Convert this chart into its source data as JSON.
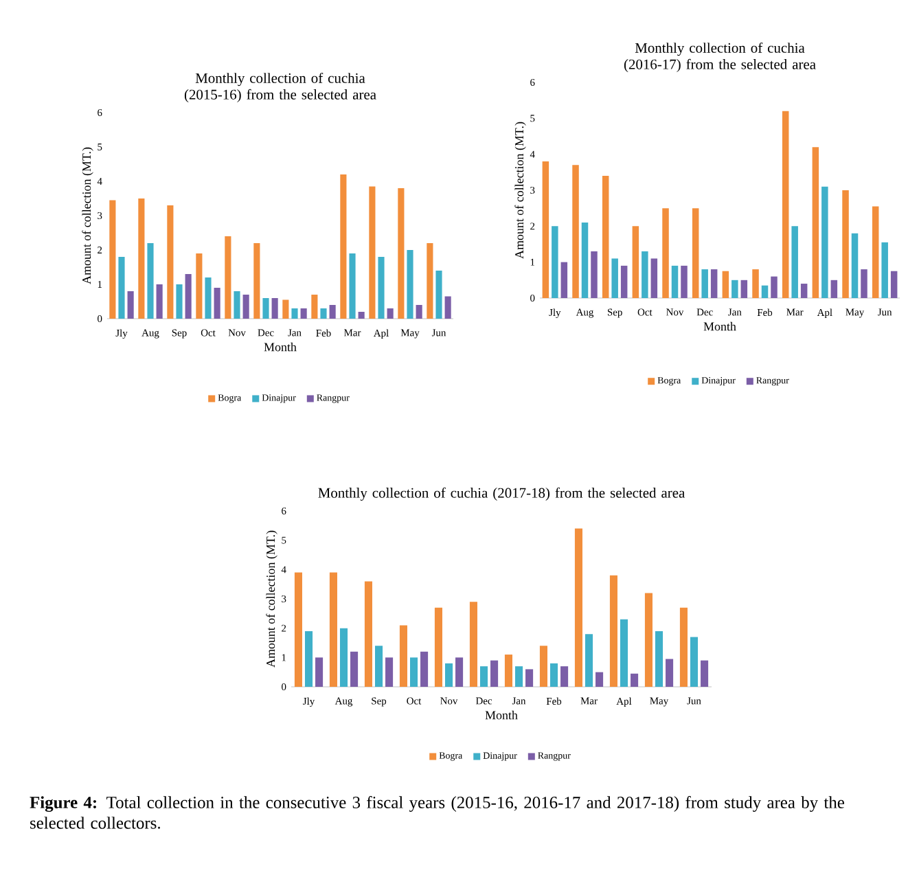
{
  "chart_data": [
    {
      "type": "bar",
      "title": "Monthly collection of cuchia (2015-16) from the selected area",
      "xlabel": "Month",
      "ylabel": "Amount of collection (MT.)",
      "categories": [
        "Jly",
        "Aug",
        "Sep",
        "Oct",
        "Nov",
        "Dec",
        "Jan",
        "Feb",
        "Mar",
        "Apl",
        "May",
        "Jun"
      ],
      "series": [
        {
          "name": "Bogra",
          "color": "#f28e3b",
          "values": [
            3.45,
            3.5,
            3.3,
            1.9,
            2.4,
            2.2,
            0.55,
            0.7,
            4.2,
            3.85,
            3.8,
            2.2
          ]
        },
        {
          "name": "Dinajpur",
          "color": "#3fb0c9",
          "values": [
            1.8,
            2.2,
            1.0,
            1.2,
            0.8,
            0.6,
            0.3,
            0.3,
            1.9,
            1.8,
            2.0,
            1.4
          ]
        },
        {
          "name": "Rangpur",
          "color": "#7b5ea7",
          "values": [
            0.8,
            1.0,
            1.3,
            0.9,
            0.7,
            0.6,
            0.3,
            0.4,
            0.2,
            0.3,
            0.4,
            0.65
          ]
        }
      ],
      "ylim": [
        0,
        6
      ],
      "yticks": [
        0,
        1,
        2,
        3,
        4,
        5,
        6
      ],
      "legend": "bottom"
    },
    {
      "type": "bar",
      "title": "Monthly collection of cuchia (2016-17) from the selected area",
      "xlabel": "Month",
      "ylabel": "Amount of collection (MT.)",
      "categories": [
        "Jly",
        "Aug",
        "Sep",
        "Oct",
        "Nov",
        "Dec",
        "Jan",
        "Feb",
        "Mar",
        "Apl",
        "May",
        "Jun"
      ],
      "series": [
        {
          "name": "Bogra",
          "color": "#f28e3b",
          "values": [
            3.8,
            3.7,
            3.4,
            2.0,
            2.5,
            2.5,
            0.75,
            0.8,
            5.2,
            4.2,
            3.0,
            2.55
          ]
        },
        {
          "name": "Dinajpur",
          "color": "#3fb0c9",
          "values": [
            2.0,
            2.1,
            1.1,
            1.3,
            0.9,
            0.8,
            0.5,
            0.35,
            2.0,
            3.1,
            1.8,
            1.55
          ]
        },
        {
          "name": "Rangpur",
          "color": "#7b5ea7",
          "values": [
            1.0,
            1.3,
            0.9,
            1.1,
            0.9,
            0.8,
            0.5,
            0.6,
            0.4,
            0.5,
            0.8,
            0.75
          ]
        }
      ],
      "ylim": [
        0,
        6
      ],
      "yticks": [
        0,
        1,
        2,
        3,
        4,
        5,
        6
      ],
      "legend": "bottom"
    },
    {
      "type": "bar",
      "title": "Monthly collection of cuchia (2017-18)  from the selected area",
      "xlabel": "Month",
      "ylabel": "Amount of collection (MT.)",
      "categories": [
        "Jly",
        "Aug",
        "Sep",
        "Oct",
        "Nov",
        "Dec",
        "Jan",
        "Feb",
        "Mar",
        "Apl",
        "May",
        "Jun"
      ],
      "series": [
        {
          "name": "Bogra",
          "color": "#f28e3b",
          "values": [
            3.9,
            3.9,
            3.6,
            2.1,
            2.7,
            2.9,
            1.1,
            1.4,
            5.4,
            3.8,
            3.2,
            2.7
          ]
        },
        {
          "name": "Dinajpur",
          "color": "#3fb0c9",
          "values": [
            1.9,
            2.0,
            1.4,
            1.0,
            0.8,
            0.7,
            0.7,
            0.8,
            1.8,
            2.3,
            1.9,
            1.7
          ]
        },
        {
          "name": "Rangpur",
          "color": "#7b5ea7",
          "values": [
            1.0,
            1.2,
            1.0,
            1.2,
            1.0,
            0.9,
            0.6,
            0.7,
            0.5,
            0.45,
            0.95,
            0.9
          ]
        }
      ],
      "ylim": [
        0,
        6
      ],
      "yticks": [
        0,
        1,
        2,
        3,
        4,
        5,
        6
      ],
      "legend": "bottom",
      "annotations": [
        "**Figure 4:** Total collection in the consecutive 3 fiscal years (2015-16, 2016-17 and 2017-18) from study area by the selected collectors."
      ]
    }
  ]
}
